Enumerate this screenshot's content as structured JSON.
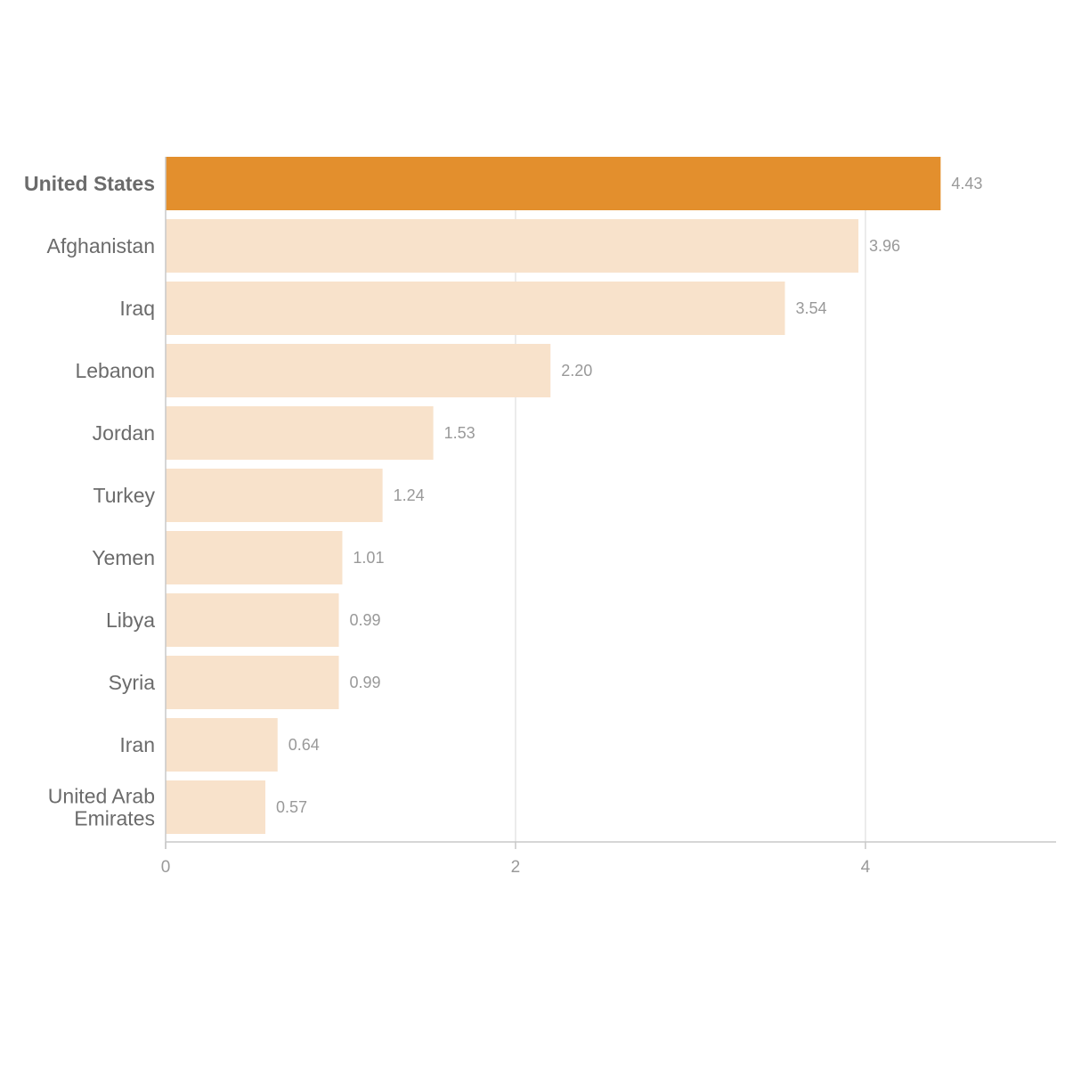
{
  "chart_data": {
    "type": "bar",
    "orientation": "horizontal",
    "categories": [
      "United States",
      "Afghanistan",
      "Iraq",
      "Lebanon",
      "Jordan",
      "Turkey",
      "Yemen",
      "Libya",
      "Syria",
      "Iran",
      "United Arab Emirates"
    ],
    "category_lines": [
      [
        "United States"
      ],
      [
        "Afghanistan"
      ],
      [
        "Iraq"
      ],
      [
        "Lebanon"
      ],
      [
        "Jordan"
      ],
      [
        "Turkey"
      ],
      [
        "Yemen"
      ],
      [
        "Libya"
      ],
      [
        "Syria"
      ],
      [
        "Iran"
      ],
      [
        "United Arab",
        "Emirates"
      ]
    ],
    "values": [
      4.43,
      3.96,
      3.54,
      2.2,
      1.53,
      1.24,
      1.01,
      0.99,
      0.99,
      0.64,
      0.57
    ],
    "value_labels": [
      "4.43",
      "3.96",
      "3.54",
      "2.20",
      "1.53",
      "1.24",
      "1.01",
      "0.99",
      "0.99",
      "0.64",
      "0.57"
    ],
    "highlight": [
      "United States"
    ],
    "xlim": [
      0,
      5.09
    ],
    "xticks": [
      0,
      2,
      4
    ],
    "xtick_labels": [
      "0",
      "2",
      "4"
    ],
    "grid": true,
    "title": "",
    "xlabel": "",
    "ylabel": "",
    "colors": {
      "highlight_bar": "#e38f2d",
      "bar": "#f8e2cb",
      "gridline": "#e6e6e6",
      "axis": "#c8c8c8",
      "category_text": "#6b6b6b",
      "value_text": "#999999",
      "tick_text": "#9a9a9a"
    }
  }
}
